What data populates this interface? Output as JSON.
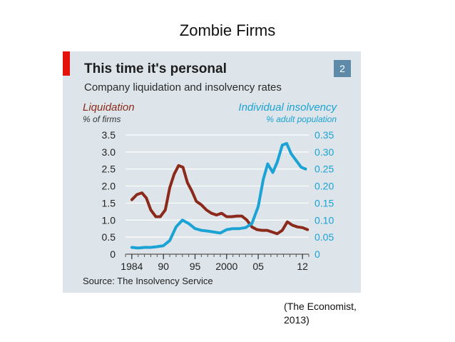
{
  "slide": {
    "title": "Zombie Firms",
    "citation": "(The Economist,\n2013)"
  },
  "chart": {
    "panel_number": "2",
    "source": "Source: The Insolvency Service"
  },
  "colors": {
    "liquidation": "#8b2a1a",
    "insolvency": "#1aa3d4",
    "accent_red": "#e3120b",
    "panel_bg": "#dde5ea",
    "grid": "#ffffff"
  },
  "chart_data": {
    "type": "line",
    "title": "This time it's personal",
    "subtitle": "Company liquidation and insolvency rates",
    "left_axis": {
      "title": "Liquidation",
      "unit": "% of firms",
      "range": [
        0,
        3.5
      ],
      "ticks": [
        "0",
        "0.5",
        "1.0",
        "1.5",
        "2.0",
        "2.5",
        "3.0",
        "3.5"
      ]
    },
    "right_axis": {
      "title": "Individual insolvency",
      "unit": "% adult population",
      "range": [
        0,
        0.35
      ],
      "ticks": [
        "0",
        "0.05",
        "0.10",
        "0.15",
        "0.20",
        "0.25",
        "0.30",
        "0.35"
      ]
    },
    "x_axis": {
      "range": [
        1984,
        2013
      ],
      "tick_labels": [
        "1984",
        "90",
        "95",
        "2000",
        "05",
        "12"
      ],
      "tick_years": [
        1985,
        1990,
        1995,
        2000,
        2005,
        2012
      ]
    },
    "grid": true,
    "series": [
      {
        "name": "Liquidation",
        "axis": "left",
        "x": [
          1985,
          1985.8,
          1986.6,
          1987.3,
          1988,
          1988.8,
          1989.5,
          1990.3,
          1991,
          1991.7,
          1992.4,
          1993.1,
          1993.8,
          1994.5,
          1995.2,
          1996,
          1996.8,
          1997.6,
          1998.4,
          1999.2,
          2000,
          2000.8,
          2001.6,
          2002.4,
          2003.2,
          2004,
          2004.8,
          2005.6,
          2006.4,
          2007.2,
          2008,
          2008.8,
          2009.6,
          2010.4,
          2011.2,
          2012,
          2012.8
        ],
        "values": [
          1.6,
          1.75,
          1.8,
          1.65,
          1.3,
          1.1,
          1.1,
          1.3,
          1.95,
          2.35,
          2.6,
          2.55,
          2.1,
          1.85,
          1.55,
          1.45,
          1.3,
          1.2,
          1.15,
          1.2,
          1.1,
          1.1,
          1.12,
          1.12,
          1.0,
          0.8,
          0.72,
          0.7,
          0.7,
          0.65,
          0.6,
          0.7,
          0.95,
          0.85,
          0.8,
          0.78,
          0.72
        ]
      },
      {
        "name": "Individual insolvency",
        "axis": "right",
        "x": [
          1985,
          1986,
          1987,
          1988,
          1989,
          1990,
          1991,
          1992,
          1993,
          1994,
          1995,
          1996,
          1997,
          1998,
          1999,
          2000,
          2001,
          2002,
          2003,
          2004,
          2005,
          2005.8,
          2006.5,
          2007.3,
          2008,
          2008.8,
          2009.5,
          2010.2,
          2011,
          2011.8,
          2012.5
        ],
        "values": [
          0.02,
          0.018,
          0.02,
          0.02,
          0.022,
          0.025,
          0.04,
          0.08,
          0.1,
          0.09,
          0.075,
          0.07,
          0.068,
          0.065,
          0.062,
          0.072,
          0.075,
          0.075,
          0.078,
          0.09,
          0.14,
          0.22,
          0.265,
          0.24,
          0.27,
          0.32,
          0.325,
          0.295,
          0.275,
          0.255,
          0.25
        ]
      }
    ]
  }
}
